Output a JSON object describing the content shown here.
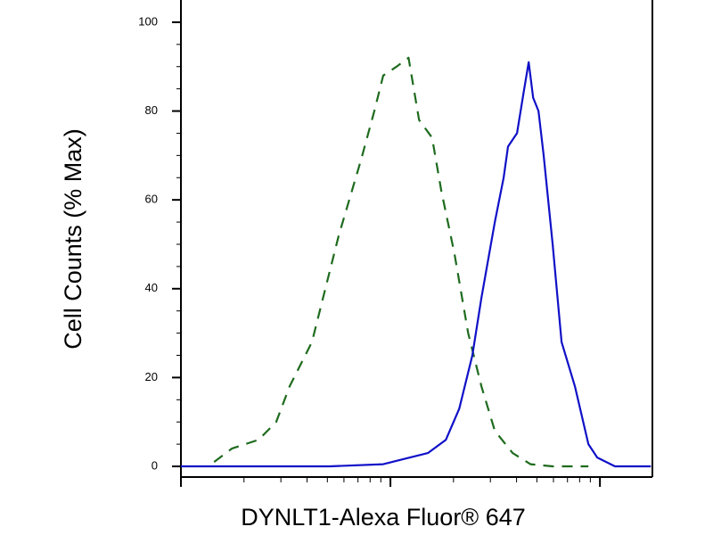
{
  "chart_data": {
    "type": "line",
    "xlabel": "DYNLT1-Alexa Fluor® 647",
    "ylabel": "Cell Counts (% Max)",
    "xscale": "log",
    "xlim": [
      1,
      178
    ],
    "xticks": [
      1,
      10,
      100
    ],
    "xminorticks": [
      2,
      3,
      4,
      5,
      6,
      7,
      8,
      9,
      20,
      30,
      40,
      50,
      60,
      70,
      80,
      90
    ],
    "ylim": [
      -2.4,
      105
    ],
    "yticks": [
      0,
      20,
      40,
      60,
      80,
      100
    ],
    "yminorticks": [
      5,
      10,
      15,
      25,
      30,
      35,
      45,
      50,
      55,
      65,
      70,
      75,
      85,
      90,
      95
    ],
    "series": [
      {
        "color": "#1e6b1e",
        "dashed": true,
        "x": [
          1.44,
          1.75,
          2.35,
          2.85,
          3.3,
          4.22,
          5.67,
          7.24,
          8.38,
          9.24,
          10.7,
          12.2,
          13.7,
          15.8,
          17.5,
          20.2,
          23.5,
          27.2,
          31.5,
          38.3,
          46.6,
          59.5,
          88.1
        ],
        "values": [
          1,
          4,
          6,
          10,
          18,
          28,
          52,
          69,
          80,
          88,
          90,
          92,
          78,
          74,
          62,
          48,
          30,
          18,
          8,
          3,
          0.5,
          0,
          0
        ]
      },
      {
        "color": "#1010c8",
        "dashed": false,
        "x": [
          1,
          5.14,
          9.24,
          12.4,
          15.1,
          18.4,
          21.3,
          24.6,
          27.2,
          31.5,
          34.7,
          36.4,
          40.2,
          43.5,
          45.7,
          48.0,
          50.9,
          53.9,
          59.5,
          65.6,
          76.0,
          88.1,
          97.1,
          118,
          175
        ],
        "values": [
          0,
          0,
          0.5,
          2,
          3,
          6,
          13,
          25,
          38,
          55,
          65,
          72,
          75,
          85,
          91,
          83,
          80,
          70,
          50,
          28,
          18,
          5,
          2,
          0,
          0
        ]
      }
    ]
  }
}
